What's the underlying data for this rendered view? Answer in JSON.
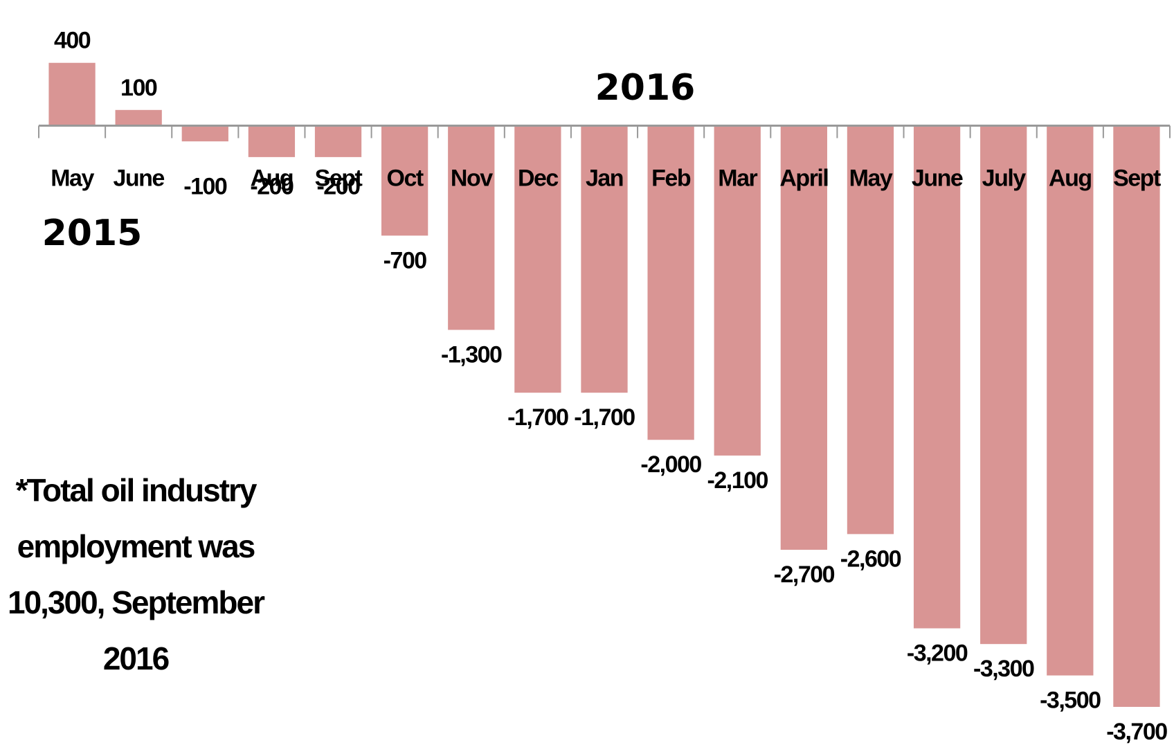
{
  "chart_data": {
    "type": "bar",
    "categories": [
      "May",
      "June",
      null,
      "Aug",
      "Sept",
      "Oct",
      "Nov",
      "Dec",
      "Jan",
      "Feb",
      "Mar",
      "April",
      "May",
      "June",
      "July",
      "Aug",
      "Sept"
    ],
    "values": [
      400,
      100,
      -100,
      -200,
      -200,
      -700,
      -1300,
      -1700,
      -1700,
      -2000,
      -2100,
      -2700,
      -2600,
      -3200,
      -3300,
      -3500,
      -3700
    ],
    "value_labels": [
      "400",
      "100",
      "-100",
      "-200",
      "-200",
      "-700",
      "-1,300",
      "-1,700",
      "-1,700",
      "-2,000",
      "-2,100",
      "-2,700",
      "-2,600",
      "-3,200",
      "-3,300",
      "-3,500",
      "-3,700"
    ],
    "color": "#d99594",
    "ylim": [
      -4000,
      800
    ],
    "annotations": [
      "2016",
      "2015"
    ],
    "note": [
      "*Total oil industry",
      "employment was",
      "10,300, September",
      "2016"
    ]
  }
}
